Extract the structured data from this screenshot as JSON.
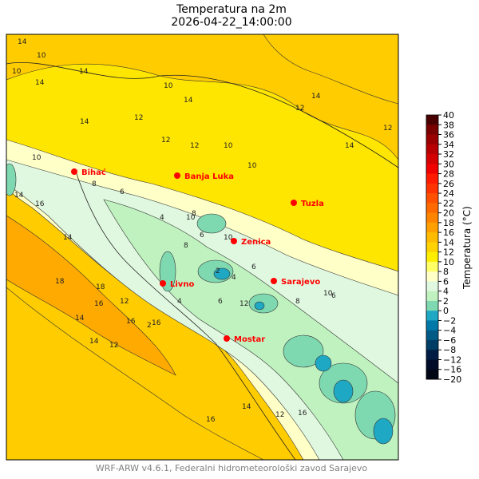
{
  "title": {
    "line1": "Temperatura na 2m",
    "line2": "2026-04-22_14:00:00"
  },
  "footer": "WRF-ARW v4.6.1, Federalni hidrometeorološki zavod Sarajevo",
  "colorbar": {
    "label": "Temperatura (°C)",
    "ticks": [
      "40",
      "38",
      "36",
      "34",
      "32",
      "30",
      "28",
      "26",
      "24",
      "22",
      "20",
      "18",
      "16",
      "14",
      "12",
      "10",
      "8",
      "6",
      "4",
      "2",
      "0",
      "−2",
      "−4",
      "−6",
      "−8",
      "−12",
      "−16",
      "−20"
    ],
    "band_colors_top_to_bottom": [
      "#4a0000",
      "#7a0000",
      "#9a0000",
      "#b80000",
      "#d40000",
      "#f00000",
      "#ff1a00",
      "#ff3300",
      "#ff5000",
      "#ff6a00",
      "#ff8400",
      "#ffa000",
      "#ffbb00",
      "#ffd200",
      "#ffee00",
      "#ffff66",
      "#ffffc8",
      "#e0f8e0",
      "#c0f2c0",
      "#7ed8b0",
      "#1ea8c4",
      "#0078a8",
      "#005a86",
      "#003e66",
      "#001c44",
      "#000c28",
      "#000616"
    ]
  },
  "cities": [
    {
      "name": "Bihać"
    },
    {
      "name": "Banja Luka"
    },
    {
      "name": "Tuzla"
    },
    {
      "name": "Zenica"
    },
    {
      "name": "Livno"
    },
    {
      "name": "Sarajevo"
    },
    {
      "name": "Mostar"
    }
  ],
  "contour_labels": [
    "14",
    "10",
    "10",
    "14",
    "14",
    "10",
    "12",
    "14",
    "14",
    "12",
    "14",
    "12",
    "12",
    "14",
    "10",
    "12",
    "10",
    "8",
    "6",
    "4",
    "6",
    "8",
    "10",
    "10",
    "6",
    "4",
    "2",
    "8",
    "6",
    "10",
    "12",
    "14",
    "14",
    "16",
    "18",
    "18",
    "14",
    "16",
    "16",
    "14",
    "16",
    "12",
    "12",
    "2",
    "4",
    "6",
    "8",
    "10",
    "12",
    "16",
    "16",
    "14"
  ],
  "city_color": "#ff0000"
}
